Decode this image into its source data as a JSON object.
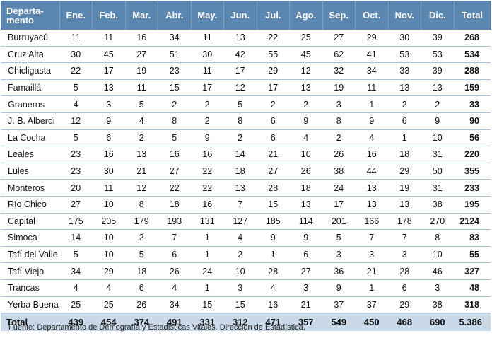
{
  "table": {
    "header": {
      "department_line1": "Departa-",
      "department_line2": "mento",
      "months": [
        "Ene.",
        "Feb.",
        "Mar.",
        "Abr.",
        "May.",
        "Jun.",
        "Jul.",
        "Ago.",
        "Sep.",
        "Oct.",
        "Nov.",
        "Dic."
      ],
      "total": "Total"
    },
    "rows": [
      {
        "name": "Burruyacú",
        "values": [
          "11",
          "11",
          "16",
          "34",
          "11",
          "13",
          "22",
          "25",
          "27",
          "29",
          "30",
          "39"
        ],
        "total": "268"
      },
      {
        "name": "Cruz Alta",
        "values": [
          "30",
          "45",
          "27",
          "51",
          "30",
          "42",
          "55",
          "45",
          "62",
          "41",
          "53",
          "53"
        ],
        "total": "534"
      },
      {
        "name": "Chicligasta",
        "values": [
          "22",
          "17",
          "19",
          "23",
          "11",
          "17",
          "29",
          "12",
          "32",
          "34",
          "33",
          "39"
        ],
        "total": "288"
      },
      {
        "name": "Famaillá",
        "values": [
          "5",
          "13",
          "11",
          "15",
          "17",
          "12",
          "17",
          "13",
          "19",
          "11",
          "13",
          "13"
        ],
        "total": "159"
      },
      {
        "name": "Graneros",
        "values": [
          "4",
          "3",
          "5",
          "2",
          "2",
          "5",
          "2",
          "2",
          "3",
          "1",
          "2",
          "2"
        ],
        "total": "33"
      },
      {
        "name": "J. B. Alberdi",
        "values": [
          "12",
          "9",
          "4",
          "8",
          "2",
          "8",
          "6",
          "9",
          "8",
          "9",
          "6",
          "9"
        ],
        "total": "90"
      },
      {
        "name": "La Cocha",
        "values": [
          "5",
          "6",
          "2",
          "5",
          "9",
          "2",
          "6",
          "4",
          "2",
          "4",
          "1",
          "10"
        ],
        "total": "56"
      },
      {
        "name": "Leales",
        "values": [
          "23",
          "16",
          "13",
          "16",
          "16",
          "14",
          "21",
          "10",
          "26",
          "16",
          "18",
          "31"
        ],
        "total": "220"
      },
      {
        "name": "Lules",
        "values": [
          "23",
          "30",
          "21",
          "27",
          "22",
          "18",
          "27",
          "26",
          "38",
          "44",
          "29",
          "50"
        ],
        "total": "355"
      },
      {
        "name": "Monteros",
        "values": [
          "20",
          "11",
          "12",
          "22",
          "22",
          "13",
          "28",
          "18",
          "24",
          "13",
          "19",
          "31"
        ],
        "total": "233"
      },
      {
        "name": "Río Chico",
        "values": [
          "27",
          "10",
          "8",
          "18",
          "16",
          "7",
          "15",
          "13",
          "17",
          "13",
          "13",
          "38"
        ],
        "total": "195"
      },
      {
        "name": "Capital",
        "values": [
          "175",
          "205",
          "179",
          "193",
          "131",
          "127",
          "185",
          "114",
          "201",
          "166",
          "178",
          "270"
        ],
        "total": "2124"
      },
      {
        "name": "Simoca",
        "values": [
          "14",
          "10",
          "2",
          "7",
          "1",
          "4",
          "9",
          "9",
          "5",
          "7",
          "7",
          "8"
        ],
        "total": "83"
      },
      {
        "name": "Tafí del Valle",
        "values": [
          "5",
          "10",
          "5",
          "6",
          "1",
          "2",
          "1",
          "6",
          "3",
          "3",
          "3",
          "10"
        ],
        "total": "55"
      },
      {
        "name": "Tafí Viejo",
        "values": [
          "34",
          "29",
          "18",
          "26",
          "24",
          "10",
          "28",
          "27",
          "36",
          "21",
          "28",
          "46"
        ],
        "total": "327"
      },
      {
        "name": "Trancas",
        "values": [
          "4",
          "4",
          "6",
          "4",
          "1",
          "3",
          "4",
          "3",
          "9",
          "1",
          "6",
          "3"
        ],
        "total": "48"
      },
      {
        "name": "Yerba Buena",
        "values": [
          "25",
          "25",
          "26",
          "34",
          "15",
          "15",
          "16",
          "21",
          "37",
          "37",
          "29",
          "38"
        ],
        "total": "318"
      }
    ],
    "footer": {
      "label": "Total",
      "values": [
        "439",
        "454",
        "374",
        "491",
        "331",
        "312",
        "471",
        "357",
        "549",
        "450",
        "468",
        "690"
      ],
      "total": "5.386"
    }
  },
  "source": "Fuente: Departamento de Demografía y Estadísticas Vitales. Dirección de Estadística."
}
